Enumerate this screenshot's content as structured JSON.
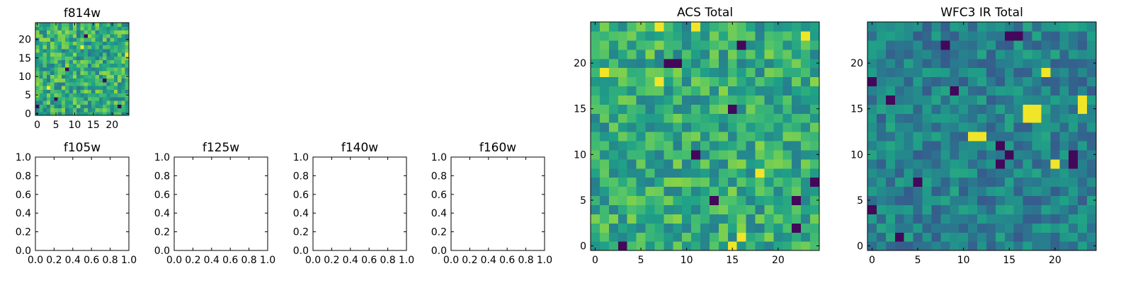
{
  "figure": {
    "title": ""
  },
  "colormap": [
    "#440154",
    "#46317e",
    "#365c8d",
    "#277f8e",
    "#1fa187",
    "#4ac16d",
    "#a0da39",
    "#fde725"
  ],
  "chart_data": [
    {
      "id": "f814w",
      "type": "heatmap",
      "title": "f814w",
      "xlim": [
        -0.5,
        24.5
      ],
      "ylim": [
        -0.5,
        24.5
      ],
      "xticks": [
        0,
        5,
        10,
        15,
        20
      ],
      "yticks": [
        0,
        5,
        10,
        15,
        20
      ],
      "xlabel": "",
      "ylabel": "",
      "grid": false,
      "grid_size": 25,
      "seed": 11,
      "bias": 0.62,
      "spread": 0.22,
      "hot": [
        [
          12,
          18
        ],
        [
          3,
          7
        ],
        [
          24,
          16
        ]
      ],
      "cold": [
        [
          5,
          4
        ],
        [
          13,
          21
        ],
        [
          22,
          2
        ],
        [
          8,
          12
        ],
        [
          18,
          9
        ],
        [
          0,
          2
        ]
      ]
    },
    {
      "id": "f105w",
      "type": "empty",
      "title": "f105w",
      "xlim": [
        0,
        1
      ],
      "ylim": [
        0,
        1
      ],
      "xticks": [
        "0.0",
        "0.2",
        "0.4",
        "0.6",
        "0.8",
        "1.0"
      ],
      "yticks": [
        "0.0",
        "0.2",
        "0.4",
        "0.6",
        "0.8",
        "1.0"
      ]
    },
    {
      "id": "f125w",
      "type": "empty",
      "title": "f125w",
      "xlim": [
        0,
        1
      ],
      "ylim": [
        0,
        1
      ],
      "xticks": [
        "0.0",
        "0.2",
        "0.4",
        "0.6",
        "0.8",
        "1.0"
      ],
      "yticks": [
        "0.0",
        "0.2",
        "0.4",
        "0.6",
        "0.8",
        "1.0"
      ]
    },
    {
      "id": "f140w",
      "type": "empty",
      "title": "f140w",
      "xlim": [
        0,
        1
      ],
      "ylim": [
        0,
        1
      ],
      "xticks": [
        "0.0",
        "0.2",
        "0.4",
        "0.6",
        "0.8",
        "1.0"
      ],
      "yticks": [
        "0.0",
        "0.2",
        "0.4",
        "0.6",
        "0.8",
        "1.0"
      ]
    },
    {
      "id": "f160w",
      "type": "empty",
      "title": "f160w",
      "xlim": [
        0,
        1
      ],
      "ylim": [
        0,
        1
      ],
      "xticks": [
        "0.0",
        "0.2",
        "0.4",
        "0.6",
        "0.8",
        "1.0"
      ],
      "yticks": [
        "0.0",
        "0.2",
        "0.4",
        "0.6",
        "0.8",
        "1.0"
      ]
    },
    {
      "id": "acs-total",
      "type": "heatmap",
      "title": "ACS Total",
      "xlim": [
        -0.5,
        24.5
      ],
      "ylim": [
        -0.5,
        24.5
      ],
      "xticks": [
        0,
        5,
        10,
        15,
        20
      ],
      "yticks": [
        0,
        5,
        10,
        15,
        20
      ],
      "xlabel": "",
      "ylabel": "",
      "grid": false,
      "grid_size": 25,
      "seed": 23,
      "bias": 0.62,
      "spread": 0.2,
      "hot": [
        [
          7,
          24
        ],
        [
          11,
          24
        ],
        [
          23,
          23
        ],
        [
          7,
          18
        ],
        [
          18,
          8
        ],
        [
          16,
          1
        ],
        [
          15,
          0
        ],
        [
          1,
          19
        ]
      ],
      "cold": [
        [
          16,
          22
        ],
        [
          8,
          20
        ],
        [
          9,
          20
        ],
        [
          11,
          10
        ],
        [
          13,
          5
        ],
        [
          22,
          5
        ],
        [
          22,
          2
        ],
        [
          24,
          7
        ],
        [
          3,
          0
        ],
        [
          15,
          15
        ]
      ]
    },
    {
      "id": "wfc3-ir-total",
      "type": "heatmap",
      "title": "WFC3 IR Total",
      "xlim": [
        -0.5,
        24.5
      ],
      "ylim": [
        -0.5,
        24.5
      ],
      "xticks": [
        0,
        5,
        10,
        15,
        20
      ],
      "yticks": [
        0,
        5,
        10,
        15,
        20
      ],
      "xlabel": "",
      "ylabel": "",
      "grid": false,
      "grid_size": 25,
      "seed": 37,
      "bias": 0.44,
      "spread": 0.16,
      "hot": [
        [
          17,
          15
        ],
        [
          18,
          15
        ],
        [
          17,
          14
        ],
        [
          18,
          14
        ],
        [
          23,
          15
        ],
        [
          23,
          16
        ],
        [
          11,
          12
        ],
        [
          12,
          12
        ],
        [
          20,
          9
        ],
        [
          19,
          19
        ]
      ],
      "cold": [
        [
          15,
          23
        ],
        [
          16,
          23
        ],
        [
          8,
          22
        ],
        [
          2,
          16
        ],
        [
          9,
          17
        ],
        [
          14,
          11
        ],
        [
          15,
          10
        ],
        [
          14,
          9
        ],
        [
          3,
          1
        ],
        [
          5,
          7
        ],
        [
          0,
          4
        ],
        [
          22,
          10
        ],
        [
          22,
          9
        ],
        [
          0,
          18
        ]
      ]
    }
  ]
}
